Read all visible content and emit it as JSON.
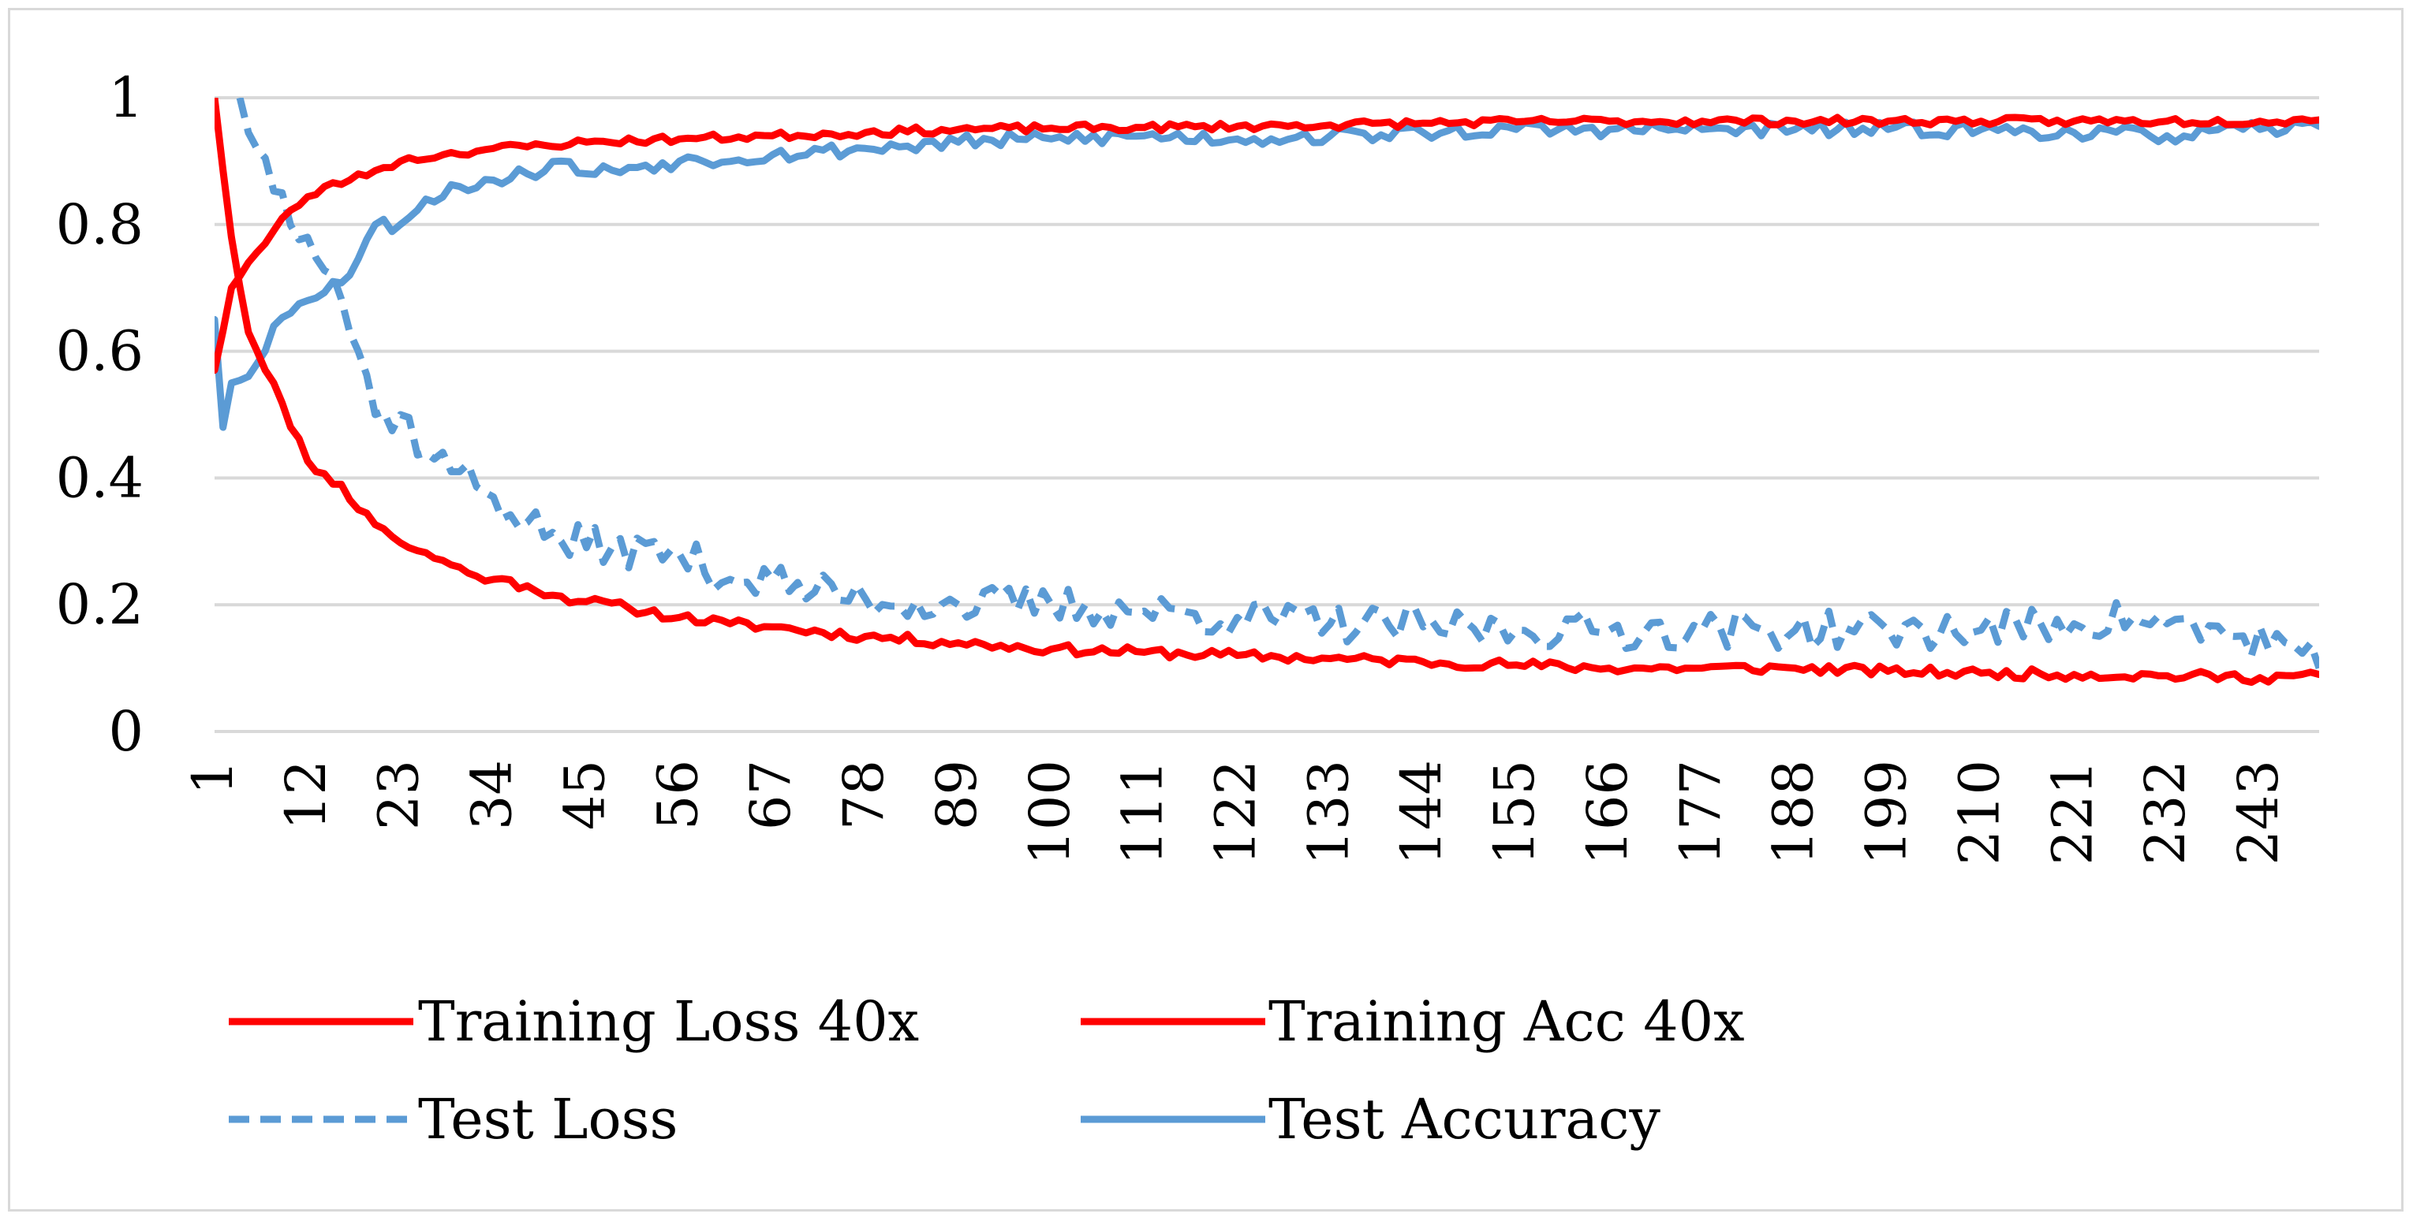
{
  "chart_data": {
    "type": "line",
    "title": "",
    "xlabel": "",
    "ylabel": "",
    "ylim": [
      0,
      1
    ],
    "xlim": [
      1,
      250
    ],
    "yticks": [
      "0",
      "0.2",
      "0.4",
      "0.6",
      "0.8",
      "1"
    ],
    "xticks": [
      "1",
      "12",
      "23",
      "34",
      "45",
      "56",
      "67",
      "78",
      "89",
      "100",
      "111",
      "122",
      "133",
      "144",
      "155",
      "166",
      "177",
      "188",
      "199",
      "210",
      "221",
      "232",
      "243"
    ],
    "grid": "horizontal",
    "legend_position": "bottom",
    "series": [
      {
        "name": "Training Loss 40x",
        "color": "#ff0000",
        "style": "solid",
        "anchors": [
          [
            1,
            1.0
          ],
          [
            3,
            0.78
          ],
          [
            5,
            0.63
          ],
          [
            8,
            0.55
          ],
          [
            10,
            0.48
          ],
          [
            13,
            0.41
          ],
          [
            16,
            0.39
          ],
          [
            18,
            0.35
          ],
          [
            21,
            0.32
          ],
          [
            24,
            0.29
          ],
          [
            28,
            0.27
          ],
          [
            31,
            0.25
          ],
          [
            34,
            0.24
          ],
          [
            38,
            0.23
          ],
          [
            41,
            0.215
          ],
          [
            45,
            0.205
          ],
          [
            50,
            0.195
          ],
          [
            56,
            0.18
          ],
          [
            62,
            0.17
          ],
          [
            67,
            0.165
          ],
          [
            78,
            0.15
          ],
          [
            89,
            0.14
          ],
          [
            100,
            0.13
          ],
          [
            111,
            0.125
          ],
          [
            122,
            0.12
          ],
          [
            133,
            0.115
          ],
          [
            144,
            0.11
          ],
          [
            155,
            0.105
          ],
          [
            166,
            0.1
          ],
          [
            177,
            0.1
          ],
          [
            188,
            0.1
          ],
          [
            199,
            0.095
          ],
          [
            210,
            0.092
          ],
          [
            221,
            0.09
          ],
          [
            232,
            0.088
          ],
          [
            243,
            0.085
          ],
          [
            250,
            0.09
          ]
        ],
        "noise": 0.008,
        "seed": 11
      },
      {
        "name": "Training Acc 40x",
        "color": "#ff0000",
        "style": "solid",
        "anchors": [
          [
            1,
            0.57
          ],
          [
            3,
            0.7
          ],
          [
            5,
            0.74
          ],
          [
            7,
            0.77
          ],
          [
            9,
            0.81
          ],
          [
            11,
            0.83
          ],
          [
            14,
            0.86
          ],
          [
            17,
            0.87
          ],
          [
            20,
            0.885
          ],
          [
            23,
            0.9
          ],
          [
            28,
            0.91
          ],
          [
            34,
            0.92
          ],
          [
            40,
            0.925
          ],
          [
            45,
            0.93
          ],
          [
            56,
            0.935
          ],
          [
            67,
            0.94
          ],
          [
            78,
            0.945
          ],
          [
            89,
            0.95
          ],
          [
            100,
            0.952
          ],
          [
            111,
            0.953
          ],
          [
            122,
            0.955
          ],
          [
            133,
            0.957
          ],
          [
            144,
            0.96
          ],
          [
            155,
            0.962
          ],
          [
            166,
            0.963
          ],
          [
            177,
            0.963
          ],
          [
            188,
            0.963
          ],
          [
            199,
            0.963
          ],
          [
            210,
            0.963
          ],
          [
            221,
            0.963
          ],
          [
            232,
            0.963
          ],
          [
            243,
            0.963
          ],
          [
            250,
            0.965
          ]
        ],
        "noise": 0.006,
        "seed": 23
      },
      {
        "name": "Test Loss",
        "color": "#5b9bd5",
        "style": "dashed",
        "anchors": [
          [
            4,
            1.0
          ],
          [
            6,
            0.92
          ],
          [
            9,
            0.85
          ],
          [
            12,
            0.78
          ],
          [
            15,
            0.72
          ],
          [
            18,
            0.6
          ],
          [
            20,
            0.5
          ],
          [
            23,
            0.5
          ],
          [
            26,
            0.44
          ],
          [
            30,
            0.41
          ],
          [
            34,
            0.37
          ],
          [
            38,
            0.33
          ],
          [
            42,
            0.3
          ],
          [
            48,
            0.29
          ],
          [
            56,
            0.28
          ],
          [
            62,
            0.24
          ],
          [
            67,
            0.24
          ],
          [
            72,
            0.22
          ],
          [
            78,
            0.21
          ],
          [
            89,
            0.2
          ],
          [
            100,
            0.2
          ],
          [
            111,
            0.19
          ],
          [
            122,
            0.18
          ],
          [
            133,
            0.17
          ],
          [
            144,
            0.165
          ],
          [
            155,
            0.16
          ],
          [
            166,
            0.16
          ],
          [
            177,
            0.16
          ],
          [
            188,
            0.16
          ],
          [
            199,
            0.16
          ],
          [
            210,
            0.16
          ],
          [
            221,
            0.17
          ],
          [
            228,
            0.18
          ],
          [
            232,
            0.17
          ],
          [
            240,
            0.15
          ],
          [
            246,
            0.14
          ],
          [
            250,
            0.1
          ]
        ],
        "noise": 0.03,
        "seed": 37
      },
      {
        "name": "Test Accuracy",
        "color": "#5b9bd5",
        "style": "solid",
        "anchors": [
          [
            1,
            0.65
          ],
          [
            2,
            0.48
          ],
          [
            3,
            0.55
          ],
          [
            6,
            0.58
          ],
          [
            8,
            0.64
          ],
          [
            10,
            0.66
          ],
          [
            12,
            0.68
          ],
          [
            15,
            0.71
          ],
          [
            17,
            0.72
          ],
          [
            20,
            0.8
          ],
          [
            23,
            0.8
          ],
          [
            26,
            0.84
          ],
          [
            30,
            0.86
          ],
          [
            34,
            0.87
          ],
          [
            38,
            0.88
          ],
          [
            42,
            0.9
          ],
          [
            45,
            0.88
          ],
          [
            50,
            0.89
          ],
          [
            56,
            0.9
          ],
          [
            67,
            0.91
          ],
          [
            78,
            0.92
          ],
          [
            89,
            0.93
          ],
          [
            100,
            0.935
          ],
          [
            111,
            0.94
          ],
          [
            122,
            0.935
          ],
          [
            133,
            0.94
          ],
          [
            144,
            0.945
          ],
          [
            155,
            0.95
          ],
          [
            166,
            0.95
          ],
          [
            177,
            0.95
          ],
          [
            188,
            0.95
          ],
          [
            199,
            0.95
          ],
          [
            210,
            0.95
          ],
          [
            221,
            0.945
          ],
          [
            232,
            0.94
          ],
          [
            243,
            0.95
          ],
          [
            250,
            0.955
          ]
        ],
        "noise": 0.012,
        "seed": 53
      }
    ]
  }
}
